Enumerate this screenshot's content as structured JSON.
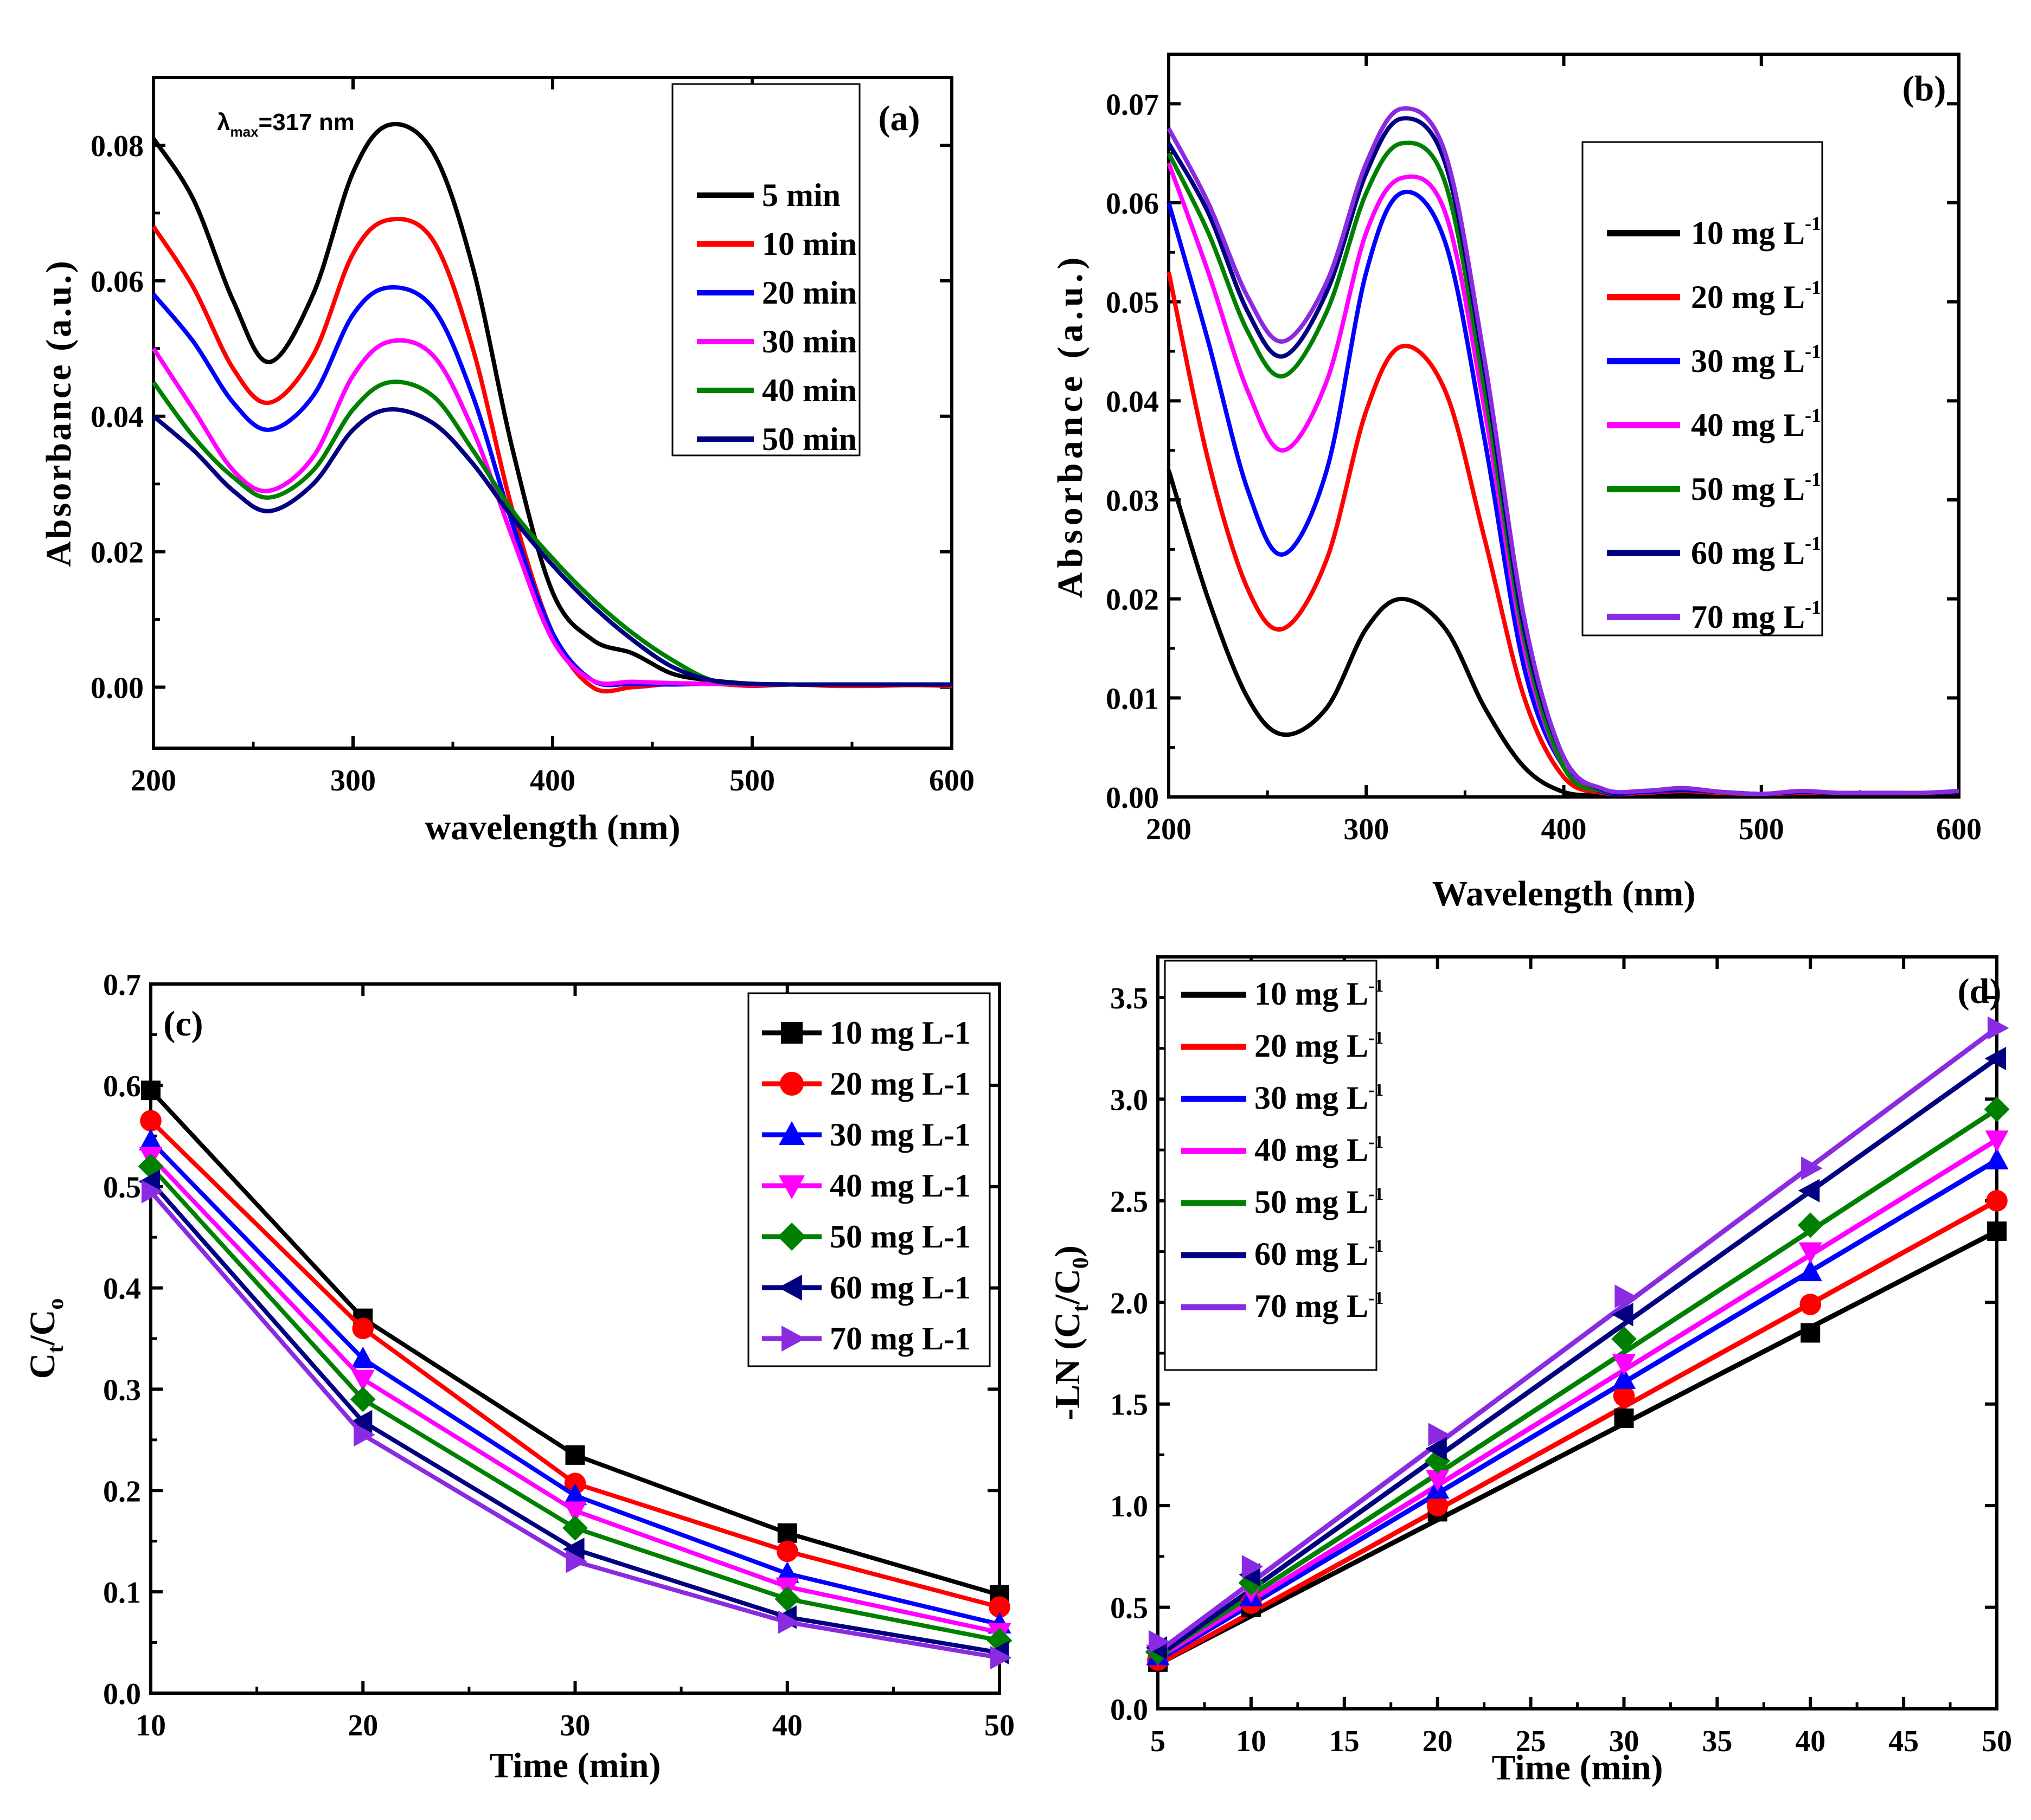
{
  "chart_data": [
    {
      "type": "line",
      "panel_label": "(a)",
      "annotation": {
        "lambda": "λ",
        "sub": "max",
        "value": "=317 nm"
      },
      "xlabel": "wavelength (nm)",
      "ylabel": "Absorbance (a.u.)",
      "xlim": [
        200,
        600
      ],
      "ylim": [
        -0.009,
        0.09
      ],
      "xticks": [
        200,
        300,
        400,
        500,
        600
      ],
      "xtick_labels": [
        "200",
        "300",
        "400",
        "500",
        "600"
      ],
      "yticks": [
        0.0,
        0.02,
        0.04,
        0.06,
        0.08
      ],
      "ytick_labels": [
        "0.00",
        "0.02",
        "0.04",
        "0.06",
        "0.08"
      ],
      "legend_position": "top-right",
      "x": [
        200,
        220,
        240,
        258,
        280,
        300,
        318,
        340,
        360,
        380,
        400,
        420,
        440,
        460,
        480,
        500,
        520,
        540,
        560,
        580,
        600
      ],
      "series": [
        {
          "name": "5 min",
          "color": "#000000",
          "values": [
            0.081,
            0.072,
            0.057,
            0.048,
            0.058,
            0.076,
            0.083,
            0.079,
            0.062,
            0.035,
            0.014,
            0.007,
            0.005,
            0.002,
            0.001,
            0.0005,
            0.0004,
            0.0004,
            0.0004,
            0.0004,
            0.0004
          ]
        },
        {
          "name": "10 min",
          "color": "#ff0000",
          "values": [
            0.068,
            0.059,
            0.047,
            0.042,
            0.049,
            0.064,
            0.069,
            0.066,
            0.05,
            0.026,
            0.008,
            0.0,
            0.0,
            0.0005,
            0.0005,
            0.0002,
            0.0004,
            0.0002,
            0.0002,
            0.0003,
            0.0002
          ]
        },
        {
          "name": "20 min",
          "color": "#0000ff",
          "values": [
            0.058,
            0.051,
            0.042,
            0.038,
            0.043,
            0.055,
            0.059,
            0.056,
            0.043,
            0.024,
            0.008,
            0.001,
            0.0005,
            0.0004,
            0.0005,
            0.0004,
            0.0004,
            0.0004,
            0.0004,
            0.0004,
            0.0004
          ]
        },
        {
          "name": "30 min",
          "color": "#ff00ff",
          "values": [
            0.05,
            0.041,
            0.032,
            0.029,
            0.034,
            0.046,
            0.051,
            0.049,
            0.038,
            0.022,
            0.007,
            0.001,
            0.0008,
            0.0006,
            0.0005,
            0.0004,
            0.0004,
            0.0004,
            0.0004,
            0.0004,
            0.0004
          ]
        },
        {
          "name": "40 min",
          "color": "#008000",
          "values": [
            0.045,
            0.037,
            0.031,
            0.028,
            0.032,
            0.041,
            0.045,
            0.043,
            0.035,
            0.026,
            0.019,
            0.013,
            0.008,
            0.004,
            0.001,
            0.0005,
            0.0004,
            0.0004,
            0.0004,
            0.0004,
            0.0004
          ]
        },
        {
          "name": "50 min",
          "color": "#000080",
          "values": [
            0.04,
            0.035,
            0.029,
            0.026,
            0.03,
            0.038,
            0.041,
            0.039,
            0.033,
            0.025,
            0.018,
            0.012,
            0.007,
            0.003,
            0.001,
            0.0005,
            0.0004,
            0.0004,
            0.0004,
            0.0004,
            0.0004
          ]
        }
      ]
    },
    {
      "type": "line",
      "panel_label": "(b)",
      "xlabel": "Wavelength (nm)",
      "ylabel": "Absorbance (a.u.)",
      "xlim": [
        200,
        600
      ],
      "ylim": [
        0.0,
        0.075
      ],
      "xticks": [
        200,
        300,
        400,
        500,
        600
      ],
      "xtick_labels": [
        "200",
        "300",
        "400",
        "500",
        "600"
      ],
      "yticks": [
        0.0,
        0.01,
        0.02,
        0.03,
        0.04,
        0.05,
        0.06,
        0.07
      ],
      "ytick_labels": [
        "0.00",
        "0.01",
        "0.02",
        "0.03",
        "0.04",
        "0.05",
        "0.06",
        "0.07"
      ],
      "legend_position": "top-right",
      "x": [
        200,
        220,
        240,
        258,
        280,
        300,
        318,
        340,
        360,
        380,
        400,
        420,
        440,
        460,
        480,
        500,
        520,
        540,
        560,
        580,
        600
      ],
      "series": [
        {
          "name": "10 mg L",
          "sup": "-1",
          "color": "#000000",
          "values": [
            0.033,
            0.02,
            0.01,
            0.0063,
            0.009,
            0.017,
            0.02,
            0.017,
            0.009,
            0.003,
            0.0005,
            0.0002,
            0.0002,
            0.0004,
            0.0002,
            0.0002,
            0.0002,
            0.0002,
            0.0002,
            0.0002,
            0.0004
          ]
        },
        {
          "name": "20 mg L",
          "sup": "-1",
          "color": "#ff0000",
          "values": [
            0.053,
            0.034,
            0.021,
            0.017,
            0.024,
            0.039,
            0.0455,
            0.041,
            0.026,
            0.01,
            0.002,
            0.0004,
            0.0004,
            0.0006,
            0.0004,
            0.0003,
            0.0004,
            0.0004,
            0.0004,
            0.0004,
            0.0005
          ]
        },
        {
          "name": "30 mg L",
          "sup": "-1",
          "color": "#0000ff",
          "values": [
            0.06,
            0.046,
            0.031,
            0.0245,
            0.033,
            0.053,
            0.061,
            0.056,
            0.036,
            0.013,
            0.003,
            0.0005,
            0.0005,
            0.0007,
            0.0005,
            0.0003,
            0.0005,
            0.0004,
            0.0004,
            0.0004,
            0.0005
          ]
        },
        {
          "name": "40 mg L",
          "sup": "-1",
          "color": "#ff00ff",
          "values": [
            0.064,
            0.053,
            0.041,
            0.035,
            0.042,
            0.057,
            0.0625,
            0.059,
            0.039,
            0.015,
            0.003,
            0.0006,
            0.0006,
            0.0008,
            0.0005,
            0.0003,
            0.0005,
            0.0004,
            0.0004,
            0.0004,
            0.0005
          ]
        },
        {
          "name": "50 mg L",
          "sup": "-1",
          "color": "#008000",
          "values": [
            0.065,
            0.057,
            0.047,
            0.0425,
            0.049,
            0.061,
            0.066,
            0.062,
            0.041,
            0.016,
            0.003,
            0.0006,
            0.0006,
            0.0008,
            0.0005,
            0.0003,
            0.0005,
            0.0004,
            0.0004,
            0.0004,
            0.0005
          ]
        },
        {
          "name": "60 mg L",
          "sup": "-1",
          "color": "#000080",
          "values": [
            0.066,
            0.059,
            0.049,
            0.0445,
            0.051,
            0.063,
            0.0685,
            0.064,
            0.043,
            0.017,
            0.004,
            0.0007,
            0.0006,
            0.0008,
            0.0005,
            0.0003,
            0.0005,
            0.0004,
            0.0004,
            0.0004,
            0.0005
          ]
        },
        {
          "name": "70 mg L",
          "sup": "-1",
          "color": "#8a2be2",
          "values": [
            0.0675,
            0.06,
            0.0505,
            0.046,
            0.052,
            0.064,
            0.0695,
            0.065,
            0.044,
            0.018,
            0.004,
            0.0008,
            0.0006,
            0.0009,
            0.0005,
            0.0003,
            0.0006,
            0.0004,
            0.0004,
            0.0004,
            0.0006
          ]
        }
      ]
    },
    {
      "type": "line",
      "panel_label": "(c)",
      "xlabel": "Time (min)",
      "ylabel": {
        "main": "C",
        "sub1": "t",
        "mid": "/C",
        "sub2": "o"
      },
      "xlim": [
        10,
        50
      ],
      "ylim": [
        0.0,
        0.7
      ],
      "xticks": [
        10,
        20,
        30,
        40,
        50
      ],
      "xtick_labels": [
        "10",
        "20",
        "30",
        "40",
        "50"
      ],
      "yticks": [
        0.0,
        0.1,
        0.2,
        0.3,
        0.4,
        0.5,
        0.6,
        0.7
      ],
      "ytick_labels": [
        "0.0",
        "0.1",
        "0.2",
        "0.3",
        "0.4",
        "0.5",
        "0.6",
        "0.7"
      ],
      "legend_position": "top-right",
      "x": [
        10,
        20,
        30,
        40,
        50
      ],
      "series": [
        {
          "name": "10 mg L-1",
          "marker": "square",
          "color": "#000000",
          "values": [
            0.595,
            0.37,
            0.235,
            0.158,
            0.097
          ]
        },
        {
          "name": "20 mg L-1",
          "marker": "circle",
          "color": "#ff0000",
          "values": [
            0.565,
            0.36,
            0.207,
            0.14,
            0.085
          ]
        },
        {
          "name": "30 mg L-1",
          "marker": "triangle-up",
          "color": "#0000ff",
          "values": [
            0.545,
            0.33,
            0.195,
            0.118,
            0.068
          ]
        },
        {
          "name": "40 mg L-1",
          "marker": "triangle-down",
          "color": "#ff00ff",
          "values": [
            0.53,
            0.31,
            0.18,
            0.105,
            0.06
          ]
        },
        {
          "name": "50 mg L-1",
          "marker": "diamond",
          "color": "#008000",
          "values": [
            0.52,
            0.29,
            0.163,
            0.093,
            0.052
          ]
        },
        {
          "name": "60 mg L-1",
          "marker": "triangle-left",
          "color": "#000080",
          "values": [
            0.505,
            0.268,
            0.142,
            0.075,
            0.04
          ]
        },
        {
          "name": "70 mg L-1",
          "marker": "triangle-right",
          "color": "#8a2be2",
          "values": [
            0.495,
            0.255,
            0.13,
            0.07,
            0.035
          ]
        }
      ]
    },
    {
      "type": "scatter",
      "panel_label": "(d)",
      "xlabel": "Time (min)",
      "ylabel": {
        "prefix": "-LN (C",
        "sub1": "t",
        "mid": "/C",
        "sub2": "0",
        "suffix": ")"
      },
      "xlim": [
        5,
        50
      ],
      "ylim": [
        0.0,
        3.7
      ],
      "xticks": [
        5,
        10,
        15,
        20,
        25,
        30,
        35,
        40,
        45,
        50
      ],
      "xtick_labels": [
        "5",
        "10",
        "15",
        "20",
        "25",
        "30",
        "35",
        "40",
        "45",
        "50"
      ],
      "yticks": [
        0.0,
        0.5,
        1.0,
        1.5,
        2.0,
        2.5,
        3.0,
        3.5
      ],
      "ytick_labels": [
        "0.0",
        "0.5",
        "1.0",
        "1.5",
        "2.0",
        "2.5",
        "3.0",
        "3.5"
      ],
      "legend_position": "top-left",
      "x": [
        5,
        10,
        20,
        30,
        40,
        50
      ],
      "series": [
        {
          "name": "10 mg L",
          "sup": "-1",
          "marker": "square",
          "color": "#000000",
          "values": [
            0.23,
            0.5,
            0.97,
            1.43,
            1.85,
            2.35
          ],
          "fit": [
            0.22,
            2.35
          ]
        },
        {
          "name": "20 mg L",
          "sup": "-1",
          "marker": "circle",
          "color": "#ff0000",
          "values": [
            0.24,
            0.52,
            1.0,
            1.54,
            1.99,
            2.5
          ],
          "fit": [
            0.22,
            2.5
          ]
        },
        {
          "name": "30 mg L",
          "sup": "-1",
          "marker": "triangle-up",
          "color": "#0000ff",
          "values": [
            0.26,
            0.55,
            1.08,
            1.62,
            2.15,
            2.7
          ],
          "fit": [
            0.24,
            2.7
          ]
        },
        {
          "name": "40 mg L",
          "sup": "-1",
          "marker": "triangle-down",
          "color": "#ff00ff",
          "values": [
            0.27,
            0.58,
            1.13,
            1.7,
            2.25,
            2.8
          ],
          "fit": [
            0.25,
            2.8
          ]
        },
        {
          "name": "50 mg L",
          "sup": "-1",
          "marker": "diamond",
          "color": "#008000",
          "values": [
            0.28,
            0.62,
            1.22,
            1.82,
            2.38,
            2.95
          ],
          "fit": [
            0.26,
            2.95
          ]
        },
        {
          "name": "60 mg L",
          "sup": "-1",
          "marker": "triangle-left",
          "color": "#000080",
          "values": [
            0.3,
            0.66,
            1.28,
            1.94,
            2.55,
            3.2
          ],
          "fit": [
            0.26,
            3.2
          ]
        },
        {
          "name": "70 mg L",
          "sup": "-1",
          "marker": "triangle-right",
          "color": "#8a2be2",
          "values": [
            0.33,
            0.7,
            1.35,
            2.03,
            2.66,
            3.35
          ],
          "fit": [
            0.28,
            3.35
          ]
        }
      ]
    }
  ]
}
